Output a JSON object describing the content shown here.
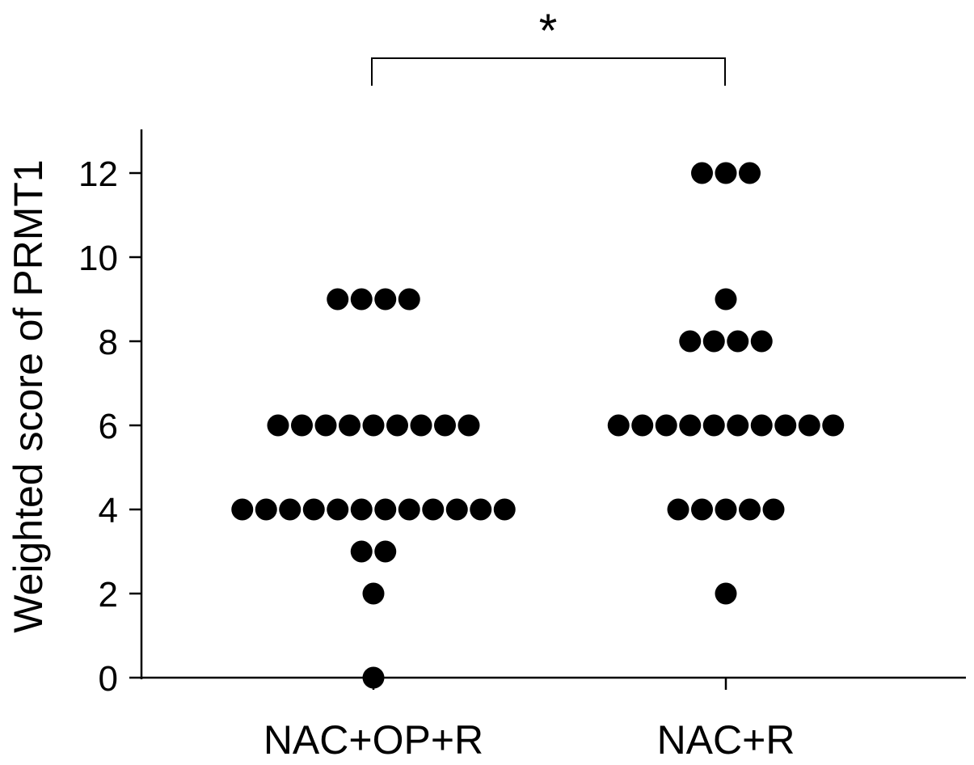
{
  "chart_data": {
    "type": "scatter",
    "ylabel": "Weighted score of PRMT1",
    "ylim": [
      0,
      13
    ],
    "yticks": [
      "0",
      "2",
      "4",
      "6",
      "8",
      "10",
      "12"
    ],
    "grid": false,
    "categories": [
      "NAC+OP+R",
      "NAC+R"
    ],
    "series": [
      {
        "category": "NAC+OP+R",
        "values": [
          0,
          2,
          3,
          3,
          4,
          4,
          4,
          4,
          4,
          4,
          4,
          4,
          4,
          4,
          4,
          4,
          6,
          6,
          6,
          6,
          6,
          6,
          6,
          6,
          6,
          9,
          9,
          9,
          9
        ]
      },
      {
        "category": "NAC+R",
        "values": [
          2,
          4,
          4,
          4,
          4,
          4,
          6,
          6,
          6,
          6,
          6,
          6,
          6,
          6,
          6,
          6,
          8,
          8,
          8,
          8,
          9,
          12,
          12,
          12
        ]
      }
    ],
    "significance": {
      "between": [
        "NAC+OP+R",
        "NAC+R"
      ],
      "label": "*"
    },
    "color": "#000000"
  }
}
